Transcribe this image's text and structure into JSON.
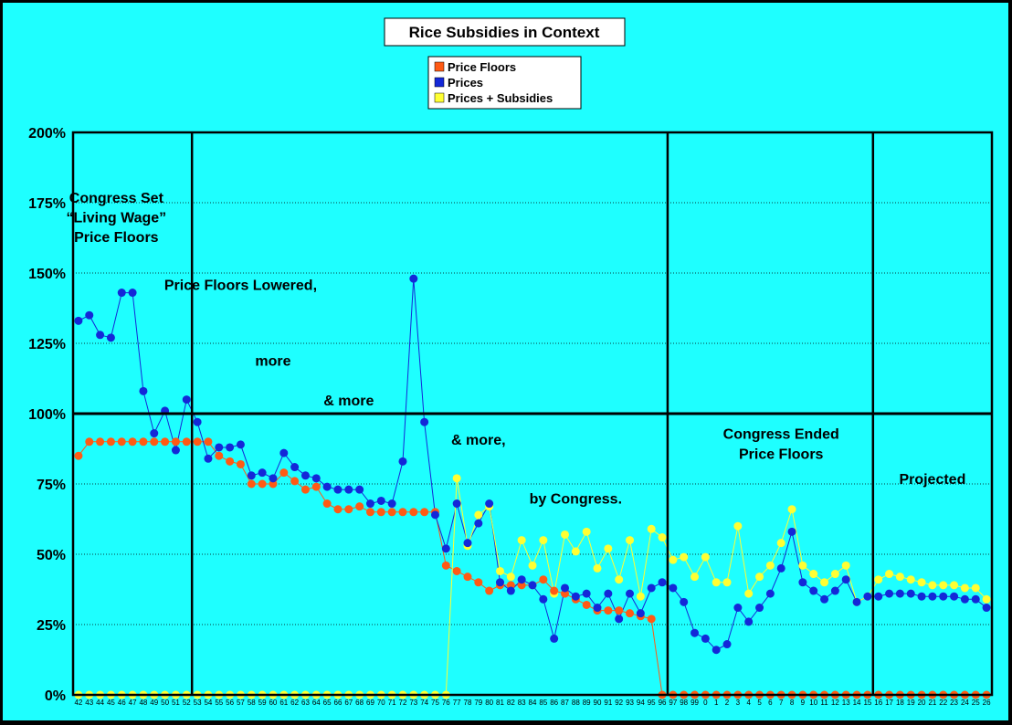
{
  "colors": {
    "background": "#1EFFFF",
    "plot_background": "#1EFFFF",
    "price_floors": "#FF5A14",
    "prices": "#1428D8",
    "prices_subsidies": "#FFFF33"
  },
  "chart_data": {
    "type": "line",
    "title": "Rice Subsidies in Context",
    "xlabel": "",
    "ylabel": "",
    "ylim": [
      0,
      200
    ],
    "y_ticks": [
      "0%",
      "25%",
      "50%",
      "75%",
      "100%",
      "125%",
      "150%",
      "175%",
      "200%"
    ],
    "grid": "horizontal dotted",
    "legend_position": "top-center",
    "categories": [
      "42",
      "43",
      "44",
      "45",
      "46",
      "47",
      "48",
      "49",
      "50",
      "51",
      "52",
      "53",
      "54",
      "55",
      "56",
      "57",
      "58",
      "59",
      "60",
      "61",
      "62",
      "63",
      "64",
      "65",
      "66",
      "67",
      "68",
      "69",
      "70",
      "71",
      "72",
      "73",
      "74",
      "75",
      "76",
      "77",
      "78",
      "79",
      "80",
      "81",
      "82",
      "83",
      "84",
      "85",
      "86",
      "87",
      "88",
      "89",
      "90",
      "91",
      "92",
      "93",
      "94",
      "95",
      "96",
      "97",
      "98",
      "99",
      "0",
      "1",
      "2",
      "3",
      "4",
      "5",
      "6",
      "7",
      "8",
      "9",
      "10",
      "11",
      "12",
      "13",
      "14",
      "15",
      "16",
      "17",
      "18",
      "19",
      "20",
      "21",
      "22",
      "23",
      "24",
      "25",
      "26"
    ],
    "series": [
      {
        "name": "Price Floors",
        "color": "#FF5A14",
        "values": [
          85,
          90,
          90,
          90,
          90,
          90,
          90,
          90,
          90,
          90,
          90,
          90,
          90,
          85,
          83,
          82,
          75,
          75,
          75,
          79,
          76,
          73,
          74,
          68,
          66,
          66,
          67,
          65,
          65,
          65,
          65,
          65,
          65,
          65,
          46,
          44,
          42,
          40,
          37,
          39,
          39,
          39,
          39,
          41,
          37,
          36,
          34,
          32,
          30,
          30,
          30,
          29,
          28,
          27,
          0,
          0,
          0,
          0,
          0,
          0,
          0,
          0,
          0,
          0,
          0,
          0,
          0,
          0,
          0,
          0,
          0,
          0,
          0,
          0,
          0,
          0,
          0,
          0,
          0,
          0,
          0,
          0,
          0,
          0,
          0
        ]
      },
      {
        "name": "Prices",
        "color": "#1428D8",
        "values": [
          133,
          135,
          128,
          127,
          143,
          143,
          108,
          93,
          101,
          87,
          105,
          97,
          84,
          88,
          88,
          89,
          78,
          79,
          77,
          86,
          81,
          78,
          77,
          74,
          73,
          73,
          73,
          68,
          69,
          68,
          83,
          148,
          97,
          64,
          52,
          68,
          54,
          61,
          68,
          40,
          37,
          41,
          39,
          34,
          20,
          38,
          35,
          36,
          31,
          36,
          27,
          36,
          29,
          38,
          40,
          38,
          33,
          22,
          20,
          16,
          18,
          31,
          26,
          31,
          36,
          45,
          58,
          40,
          37,
          34,
          37,
          41,
          33,
          35,
          35,
          36,
          36,
          36,
          35,
          35,
          35,
          35,
          34,
          34,
          31
        ]
      },
      {
        "name": "Prices + Subsidies",
        "color": "#FFFF33",
        "values": [
          0,
          0,
          0,
          0,
          0,
          0,
          0,
          0,
          0,
          0,
          0,
          0,
          0,
          0,
          0,
          0,
          0,
          0,
          0,
          0,
          0,
          0,
          0,
          0,
          0,
          0,
          0,
          0,
          0,
          0,
          0,
          0,
          0,
          0,
          0,
          77,
          53,
          64,
          67,
          44,
          42,
          55,
          46,
          55,
          36,
          57,
          51,
          58,
          45,
          52,
          41,
          55,
          35,
          59,
          56,
          48,
          49,
          42,
          49,
          40,
          40,
          60,
          36,
          42,
          46,
          54,
          66,
          46,
          43,
          40,
          43,
          46,
          33,
          35,
          41,
          43,
          42,
          41,
          40,
          39,
          39,
          39,
          38,
          38,
          34
        ]
      }
    ],
    "annotations": [
      {
        "text": "Congress Set",
        "category": "45",
        "y": 175
      },
      {
        "text": "“Living Wage”",
        "category": "45",
        "y": 168
      },
      {
        "text": "Price Floors",
        "category": "45",
        "y": 161
      },
      {
        "text": "Price Floors Lowered,",
        "category": "57",
        "y": 144
      },
      {
        "text": "more",
        "category": "60",
        "y": 117
      },
      {
        "text": "& more",
        "category": "67",
        "y": 103
      },
      {
        "text": "& more,",
        "category": "79",
        "y": 89
      },
      {
        "text": "by Congress.",
        "category": "88",
        "y": 68
      },
      {
        "text": "Congress Ended",
        "category": "7",
        "y": 91
      },
      {
        "text": "Price Floors",
        "category": "7",
        "y": 84
      },
      {
        "text": "Projected",
        "category": "21",
        "y": 75
      }
    ],
    "dividers": [
      "52.5",
      "96.5",
      "15.5"
    ],
    "reference_line": 100
  }
}
